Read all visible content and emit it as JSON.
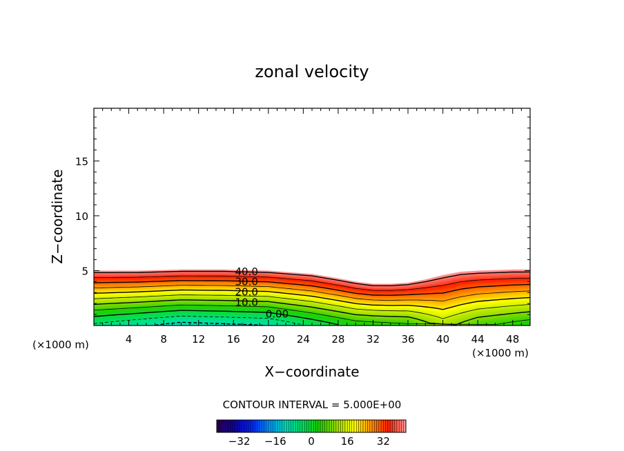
{
  "chart_data": {
    "type": "heatmap",
    "title": "zonal velocity",
    "xlabel": "X−coordinate",
    "ylabel": "Z−coordinate",
    "x_unit_left": "(×1000 m)",
    "x_unit_right": "(×1000 m)",
    "xlim": [
      0,
      50
    ],
    "ylim": [
      0,
      19.8
    ],
    "x_ticks": [
      4,
      8,
      12,
      16,
      20,
      24,
      28,
      32,
      36,
      40,
      44,
      48
    ],
    "y_ticks": [
      5,
      10,
      15
    ],
    "contour_interval_text": "CONTOUR INTERVAL = 5.000E+00",
    "contour_labels": [
      {
        "text": "40.0",
        "x": 17.5,
        "z": 4.9
      },
      {
        "text": "30.0",
        "x": 17.5,
        "z": 4.0
      },
      {
        "text": "20.0",
        "x": 17.5,
        "z": 3.05
      },
      {
        "text": "10.0",
        "x": 17.5,
        "z": 2.1
      },
      {
        "text": "0.00",
        "x": 21.0,
        "z": 1.05
      }
    ],
    "terrain_top_profile": {
      "x": [
        0,
        5,
        10,
        15,
        20,
        25,
        28,
        30,
        32,
        34,
        36,
        38,
        40,
        42,
        44,
        46,
        48,
        50
      ],
      "z": [
        5.0,
        5.0,
        5.1,
        5.1,
        5.0,
        4.7,
        4.3,
        4.0,
        3.8,
        3.8,
        3.9,
        4.2,
        4.6,
        4.9,
        5.0,
        5.05,
        5.1,
        5.1
      ]
    },
    "velocity_field_top_value": 42,
    "velocity_field_bottom_values": {
      "x": [
        0,
        10,
        20,
        30,
        36,
        40,
        44,
        50
      ],
      "u": [
        -6,
        -12,
        -10,
        2,
        4,
        12,
        6,
        2
      ]
    },
    "colorbar": {
      "ticks": [
        -32,
        -16,
        0,
        16,
        32
      ],
      "range": [
        -42,
        42
      ],
      "colors": [
        "#2a004a",
        "#1000a0",
        "#0020ff",
        "#0090ff",
        "#00e0c0",
        "#00e060",
        "#20d000",
        "#a0e000",
        "#ffff00",
        "#ff9000",
        "#ff2000",
        "#ff9a9a"
      ]
    }
  }
}
